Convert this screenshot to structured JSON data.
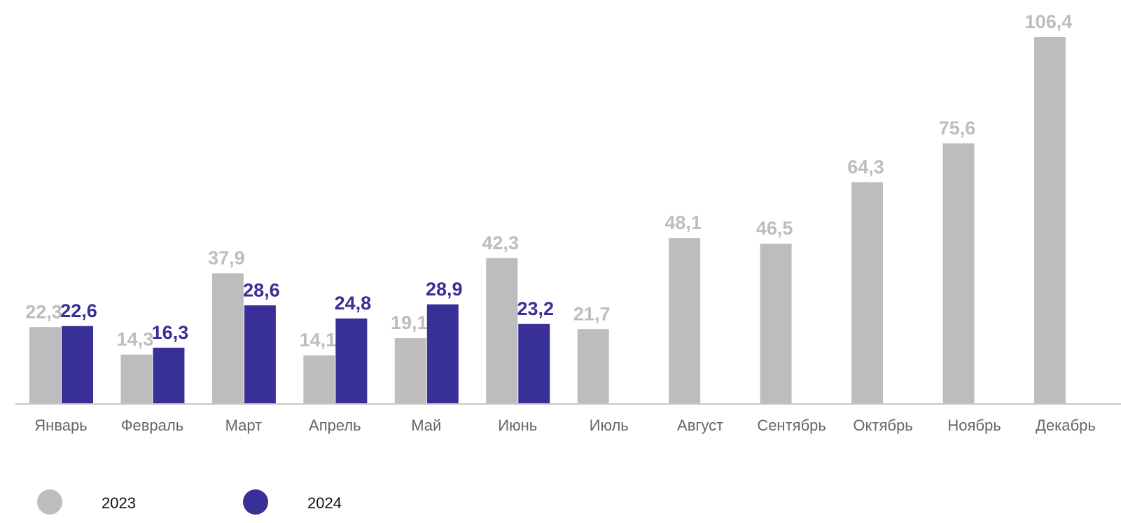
{
  "chart_data": {
    "type": "bar",
    "categories": [
      "Январь",
      "Февраль",
      "Март",
      "Апрель",
      "Май",
      "Июнь",
      "Июль",
      "Август",
      "Сентябрь",
      "Октябрь",
      "Ноябрь",
      "Декабрь"
    ],
    "series": [
      {
        "name": "2023",
        "color": "#bdbdbd",
        "values": [
          22.3,
          14.3,
          37.9,
          14.1,
          19.1,
          42.3,
          21.7,
          48.1,
          46.5,
          64.3,
          75.6,
          106.4
        ],
        "value_labels": [
          "22,3",
          "14,3",
          "37,9",
          "14,1",
          "19,1",
          "42,3",
          "21,7",
          "48,1",
          "46,5",
          "64,3",
          "75,6",
          "106,4"
        ]
      },
      {
        "name": "2024",
        "color": "#383096",
        "values": [
          22.6,
          16.3,
          28.6,
          24.8,
          28.9,
          23.2,
          null,
          null,
          null,
          null,
          null,
          null
        ],
        "value_labels": [
          "22,6",
          "16,3",
          "28,6",
          "24,8",
          "28,9",
          "23,2",
          null,
          null,
          null,
          null,
          null,
          null
        ]
      }
    ]
  }
}
